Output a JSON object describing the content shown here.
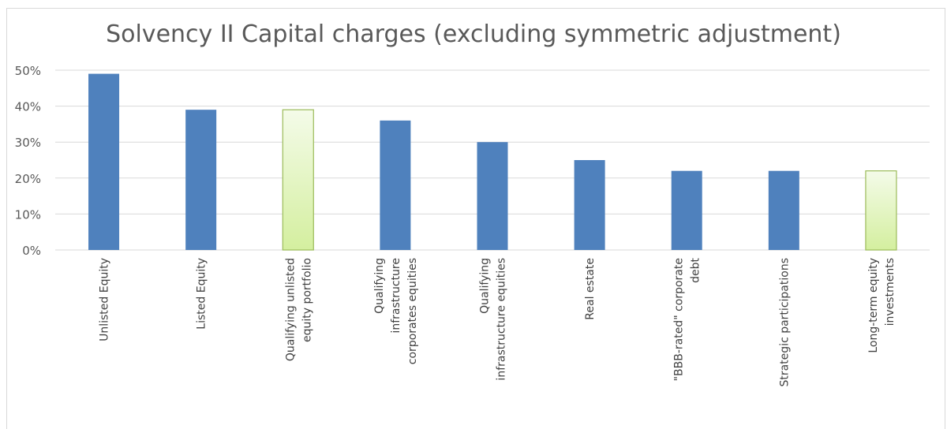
{
  "chart_data": {
    "type": "bar",
    "title": "Solvency II Capital charges (excluding symmetric adjustment)",
    "xlabel": "",
    "ylabel": "",
    "ylim": [
      0,
      50
    ],
    "y_ticks": [
      "0%",
      "10%",
      "20%",
      "30%",
      "40%",
      "50%"
    ],
    "grid": true,
    "legend": "none",
    "categories": [
      [
        "Unlisted Equity"
      ],
      [
        "Listed Equity"
      ],
      [
        "Qualifying unlisted",
        "equity portfolio"
      ],
      [
        "Qualifying",
        "infrastructure",
        "corporates equities"
      ],
      [
        "Qualifying",
        "infrastructure equities"
      ],
      [
        "Real estate"
      ],
      [
        "\"BBB-rated\" corporate",
        "debt"
      ],
      [
        "Strategic participations"
      ],
      [
        "Long-term equity",
        "investments"
      ]
    ],
    "values": [
      49,
      39,
      39,
      36,
      30,
      25,
      22,
      22,
      22
    ],
    "highlight": [
      false,
      false,
      true,
      false,
      false,
      false,
      false,
      false,
      true
    ],
    "colors": {
      "bar": "#4f81bd",
      "highlight_fill_top": "#f4fbe9",
      "highlight_fill_bottom": "#d4ef9f",
      "highlight_stroke": "#9bbb59",
      "grid": "#d9d9d9",
      "text": "#595959"
    }
  }
}
